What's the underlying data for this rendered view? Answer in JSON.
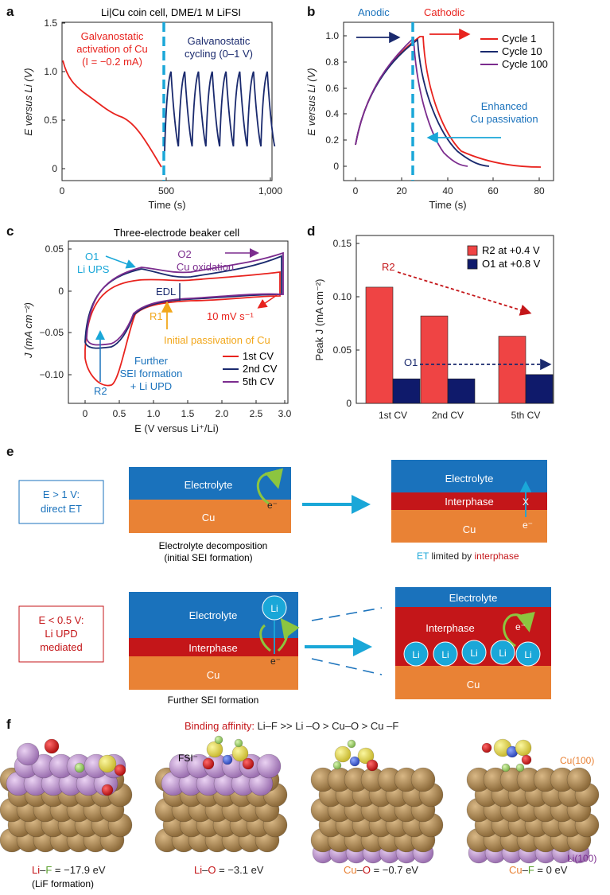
{
  "panel_labels": {
    "a": "a",
    "b": "b",
    "c": "c",
    "d": "d",
    "e": "e",
    "f": "f"
  },
  "colors": {
    "red": "#e8231e",
    "navy": "#1a2a6e",
    "purple": "#7b2c8e",
    "cyan": "#1aa7d8",
    "orange": "#e98235",
    "blue_band": "#1a72bc",
    "dark_red": "#c41619",
    "gold": "#f2a71b",
    "green_arrow": "#8cc53f",
    "bar_red": "#ef4444",
    "bar_navy": "#0f1a6b"
  },
  "panel_a": {
    "title": "Li|Cu coin cell, DME/1 M LiFSI",
    "ann_activation": [
      "Galvanostatic",
      "activation of Cu",
      "(I = −0.2 mA)"
    ],
    "ann_cycling": [
      "Galvanostatic",
      "cycling (0–1 V)"
    ],
    "ylabel": "E versus Li (V)",
    "xlabel": "Time (s)",
    "xticks": [
      "0",
      "500",
      "1,000"
    ],
    "yticks": [
      "0",
      "0.5",
      "1.0",
      "1.5"
    ]
  },
  "panel_b": {
    "label_anodic": "Anodic",
    "label_cathodic": "Cathodic",
    "legend": [
      "Cycle 1",
      "Cycle 10",
      "Cycle 100"
    ],
    "ann_passivation": [
      "Enhanced",
      "Cu passivation"
    ],
    "ylabel": "E versus Li (V)",
    "xlabel": "Time (s)",
    "xticks": [
      "0",
      "20",
      "40",
      "60",
      "80"
    ],
    "yticks": [
      "0",
      "0.2",
      "0.4",
      "0.6",
      "0.8",
      "1.0"
    ]
  },
  "panel_c": {
    "title": "Three-electrode beaker cell",
    "ann_o1": [
      "O1",
      "Li UPS"
    ],
    "ann_o2": [
      "O2",
      "Cu oxidation"
    ],
    "ann_edl": "EDL",
    "ann_r1": "R1",
    "ann_rate": "10 mV s⁻¹",
    "ann_initial": "Initial passivation of Cu",
    "ann_further": [
      "Further",
      "SEI formation",
      "+ Li UPD"
    ],
    "ann_r2": "R2",
    "legend": [
      "1st CV",
      "2nd CV",
      "5th CV"
    ],
    "ylabel": "J (mA cm⁻²)",
    "xlabel": "E (V versus Li⁺/Li)",
    "xticks": [
      "0",
      "0.5",
      "1.0",
      "1.5",
      "2.0",
      "2.5",
      "3.0"
    ],
    "yticks": [
      "0.05",
      "0",
      "−0.05",
      "−0.10"
    ]
  },
  "chart_data": {
    "type": "bar",
    "categories": [
      "1st CV",
      "2nd CV",
      "5th CV"
    ],
    "series": [
      {
        "name": "R2 at +0.4 V",
        "values": [
          0.109,
          0.082,
          0.063
        ]
      },
      {
        "name": "O1 at +0.8 V",
        "values": [
          0.023,
          0.023,
          0.027
        ]
      }
    ],
    "ylabel": "Peak J (mA cm⁻²)",
    "ylim": [
      0,
      0.15
    ],
    "yticks": [
      "0",
      "0.05",
      "0.10",
      "0.15"
    ],
    "annotations": [
      "R2",
      "O1"
    ]
  },
  "panel_e": {
    "row1_box": [
      "E > 1 V:",
      "direct ET"
    ],
    "row2_box": [
      "E < 0.5 V:",
      "Li UPD",
      "mediated"
    ],
    "electrolyte": "Electrolyte",
    "interphase": "Interphase",
    "cu": "Cu",
    "li": "Li",
    "electron": "e⁻",
    "cross": "X",
    "caption1_left": [
      "Electrolyte decomposition",
      "(initial SEI formation)"
    ],
    "caption1_right_prefix": "ET",
    "caption1_right_mid": " limited by ",
    "caption1_right_suffix": "interphase",
    "caption2_left": "Further SEI formation"
  },
  "panel_f": {
    "title_prefix": "Binding affinity:",
    "title_rest": " Li–F >> Li –O > Cu–O > Cu –F",
    "fsi_label": "FSI⁻",
    "cu100": "Cu(100)",
    "li100": "Li(100)",
    "captions": [
      {
        "a": "Li",
        "dash": "–",
        "b": "F",
        "rest": " = −17.9 eV",
        "sub": "(LiF formation)"
      },
      {
        "a": "Li",
        "dash": "–",
        "b": "O",
        "rest": " = −3.1 eV"
      },
      {
        "a": "Cu",
        "dash": "–",
        "b": "O",
        "rest": " = −0.7 eV"
      },
      {
        "a": "Cu",
        "dash": "–",
        "b": "F",
        "rest": " = 0 eV"
      }
    ]
  }
}
